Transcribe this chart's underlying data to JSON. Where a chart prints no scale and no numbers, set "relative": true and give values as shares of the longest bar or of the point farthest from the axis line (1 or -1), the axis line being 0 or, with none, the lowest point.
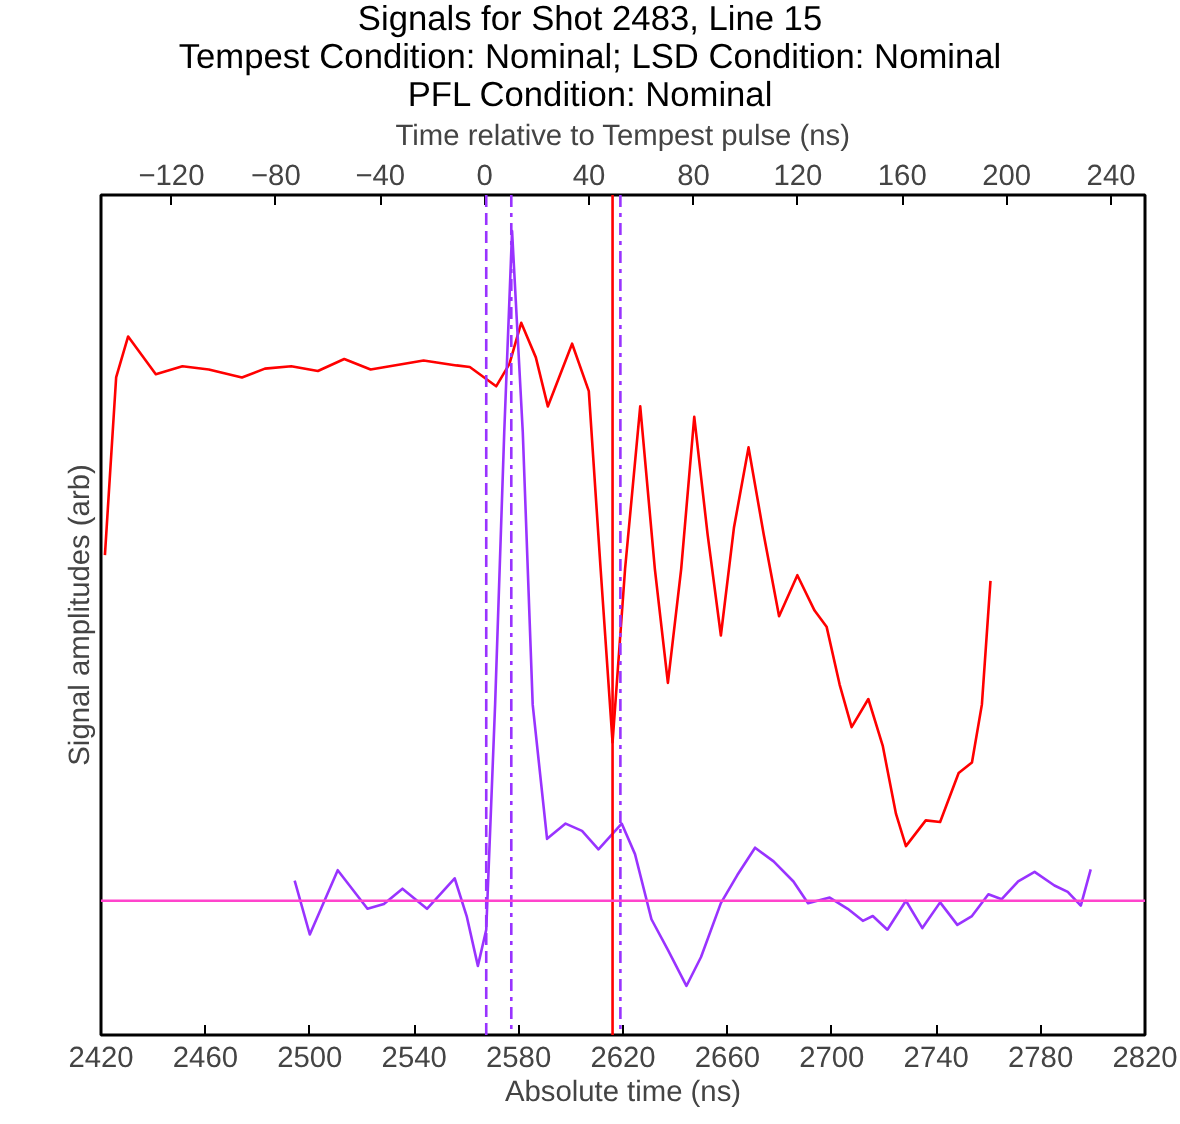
{
  "chart_data": {
    "type": "line",
    "title": "Signals for Shot 2483, Line 15",
    "subtitle": "Tempest Condition: Nominal; LSD Condition: Nominal\nPFL Condition: Nominal",
    "xlabel": "Absolute time (ns)",
    "ylabel": "Signal amplitudes (arb)",
    "x2label": "Time relative to Tempest pulse (ns)",
    "relative": true,
    "grid": false,
    "line_style": "solid",
    "marker": "none",
    "xlim": [
      2420,
      2820
    ],
    "xticks": [
      2420,
      2460,
      2500,
      2540,
      2580,
      2620,
      2660,
      2700,
      2740,
      2780,
      2820
    ],
    "x2lim": [
      -147,
      253
    ],
    "x2ticks": [
      -120,
      -80,
      -40,
      0,
      40,
      80,
      120,
      160,
      200,
      240
    ],
    "series": [
      {
        "color": "#ff0000",
        "x": [
          2421.5,
          2425.8,
          2430.4,
          2441,
          2451.2,
          2461.3,
          2474,
          2482.8,
          2492.9,
          2503.1,
          2513.2,
          2523.3,
          2543.6,
          2556.2,
          2561.3,
          2571.4,
          2576.5,
          2581,
          2586.6,
          2591.2,
          2600.5,
          2606.9,
          2611.4,
          2616,
          2620.8,
          2626.6,
          2632.2,
          2637.2,
          2642.3,
          2647.3,
          2652.4,
          2657.5,
          2662.5,
          2668.1,
          2673.9,
          2679.8,
          2686.8,
          2693.4,
          2698,
          2703,
          2707.6,
          2714,
          2719.5,
          2724.6,
          2728.4,
          2736,
          2741.5,
          2748.6,
          2753.7,
          2757.5,
          2760.8
        ],
        "values": [
          0.597,
          0.818,
          0.869,
          0.822,
          0.832,
          0.828,
          0.818,
          0.829,
          0.832,
          0.826,
          0.841,
          0.828,
          0.839,
          0.833,
          0.831,
          0.807,
          0.835,
          0.886,
          0.843,
          0.782,
          0.86,
          0.801,
          0.581,
          0.364,
          0.58,
          0.782,
          0.58,
          0.438,
          0.58,
          0.769,
          0.623,
          0.497,
          0.631,
          0.731,
          0.623,
          0.521,
          0.572,
          0.528,
          0.508,
          0.436,
          0.383,
          0.418,
          0.36,
          0.275,
          0.235,
          0.267,
          0.265,
          0.326,
          0.339,
          0.411,
          0.565
        ]
      },
      {
        "color": "#9933ff",
        "x": [
          2494.2,
          2500,
          2510.7,
          2522.1,
          2528.4,
          2535.5,
          2544.9,
          2555.5,
          2560.1,
          2564.4,
          2567.6,
          2571,
          2574.5,
          2577.5,
          2581.6,
          2585.4,
          2590.9,
          2598,
          2604.3,
          2610.6,
          2619.5,
          2624.6,
          2630.9,
          2637.2,
          2644.3,
          2649.9,
          2657.5,
          2663.8,
          2670.6,
          2677.7,
          2685.3,
          2690.9,
          2699.2,
          2706.1,
          2711.9,
          2715.7,
          2721.3,
          2728.4,
          2734.7,
          2741.5,
          2748.1,
          2753.7,
          2760,
          2765.1,
          2771.4,
          2777.7,
          2785.3,
          2790.4,
          2795.4,
          2799.2
        ],
        "values": [
          0.192,
          0.125,
          0.205,
          0.157,
          0.163,
          0.182,
          0.157,
          0.195,
          0.148,
          0.086,
          0.131,
          0.411,
          0.75,
          1.0,
          0.75,
          0.411,
          0.244,
          0.263,
          0.254,
          0.231,
          0.263,
          0.225,
          0.144,
          0.106,
          0.061,
          0.097,
          0.164,
          0.199,
          0.233,
          0.216,
          0.191,
          0.164,
          0.171,
          0.157,
          0.142,
          0.148,
          0.131,
          0.167,
          0.133,
          0.165,
          0.137,
          0.148,
          0.175,
          0.169,
          0.191,
          0.203,
          0.186,
          0.178,
          0.161,
          0.206
        ]
      }
    ],
    "ref_lines": [
      {
        "axis": "x",
        "value": 2567.6,
        "color": "#9933ff",
        "line_style": "dashed"
      },
      {
        "axis": "x",
        "value": 2577.2,
        "color": "#9933ff",
        "line_style": "dashdot"
      },
      {
        "axis": "x",
        "value": 2616,
        "color": "#ff0000",
        "line_style": "solid"
      },
      {
        "axis": "x",
        "value": 2619,
        "color": "#9933ff",
        "line_style": "dashdot"
      },
      {
        "axis": "y",
        "value": 0.167,
        "color": "#ff44cc",
        "line_style": "solid"
      }
    ]
  }
}
